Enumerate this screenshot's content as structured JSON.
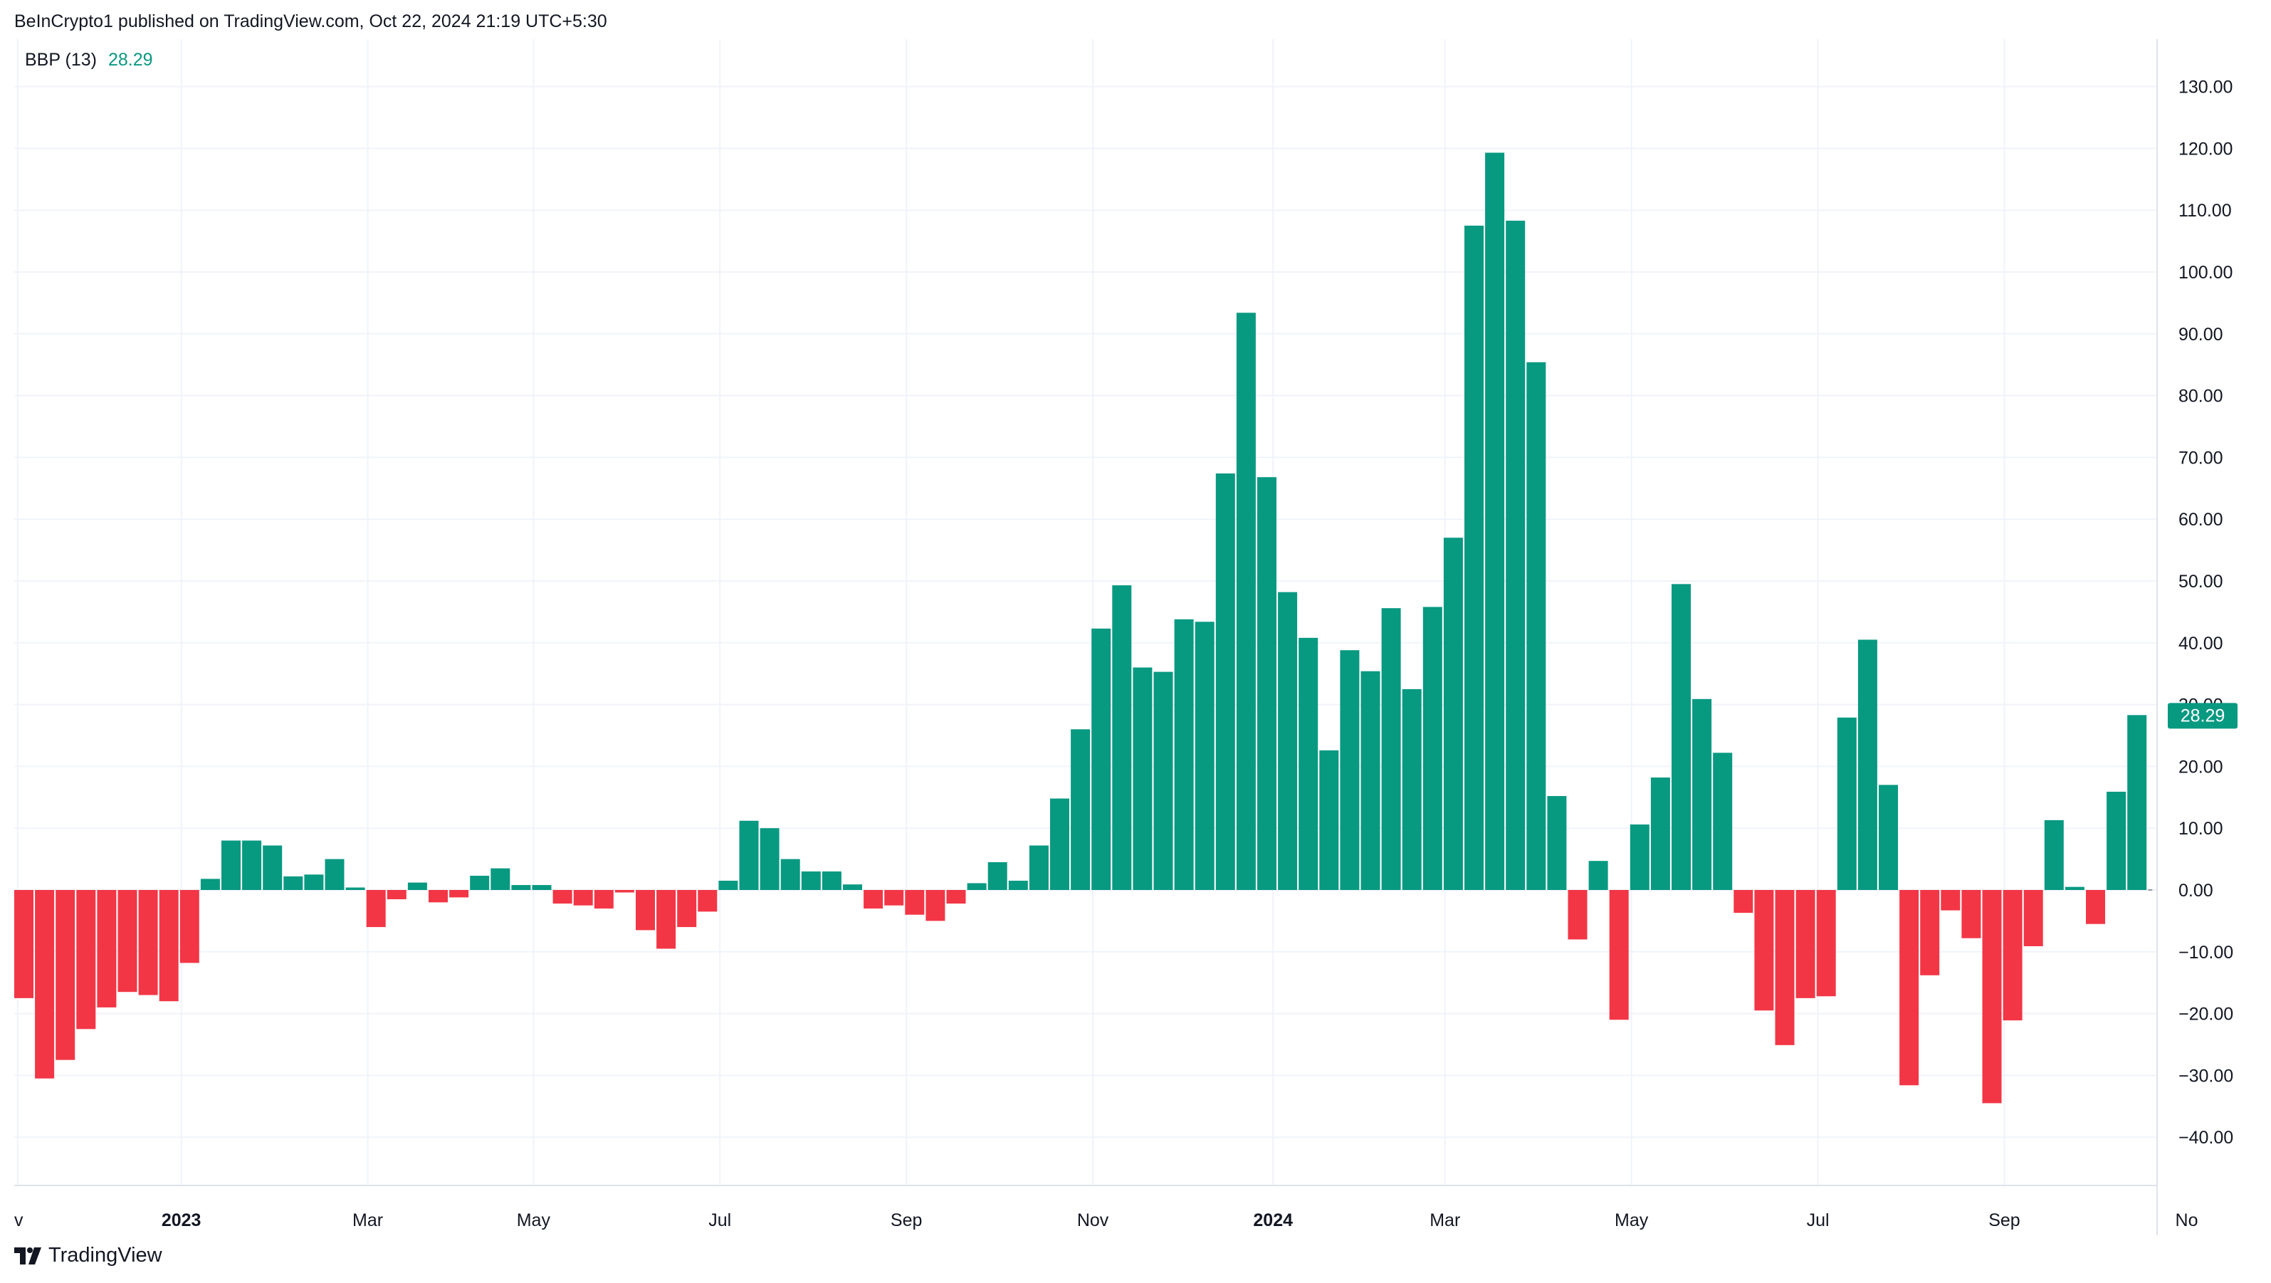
{
  "header": {
    "published_by": "BeInCrypto1 published on TradingView.com, Oct 22, 2024 21:19 UTC+5:30"
  },
  "legend": {
    "indicator": "BBP (13)",
    "value": "28.29"
  },
  "footer": {
    "brand": "TradingView"
  },
  "colors": {
    "positive": "#089981",
    "negative": "#f23645",
    "grid": "#f0f3fa",
    "text": "#131722",
    "label_bg": "#089981"
  },
  "chart_data": {
    "type": "bar",
    "title": "",
    "xlabel": "",
    "ylabel": "",
    "ylim": [
      -48.5,
      140.0
    ],
    "grid": true,
    "y_ticks": [
      130,
      120,
      110,
      100,
      90,
      80,
      70,
      60,
      50,
      40,
      30,
      20,
      10,
      0,
      -10,
      -20,
      -30,
      -40
    ],
    "y_tick_labels": [
      "130.00",
      "120.00",
      "110.00",
      "100.00",
      "90.00",
      "80.00",
      "70.00",
      "60.00",
      "50.00",
      "40.00",
      "30.00",
      "20.00",
      "10.00",
      "0.00",
      "−10.00",
      "−20.00",
      "−30.00",
      "−40.00"
    ],
    "x_tick_labels": [
      {
        "label": "v",
        "bold": false,
        "bar_pos": -0.3
      },
      {
        "label": "2023",
        "bold": true,
        "bar_pos": 7.6
      },
      {
        "label": "Mar",
        "bold": false,
        "bar_pos": 16.6
      },
      {
        "label": "May",
        "bold": false,
        "bar_pos": 24.6
      },
      {
        "label": "Jul",
        "bold": false,
        "bar_pos": 33.6
      },
      {
        "label": "Sep",
        "bold": false,
        "bar_pos": 42.6
      },
      {
        "label": "Nov",
        "bold": false,
        "bar_pos": 51.6
      },
      {
        "label": "2024",
        "bold": true,
        "bar_pos": 60.3
      },
      {
        "label": "Mar",
        "bold": false,
        "bar_pos": 68.6
      },
      {
        "label": "May",
        "bold": false,
        "bar_pos": 77.6
      },
      {
        "label": "Jul",
        "bold": false,
        "bar_pos": 86.6
      },
      {
        "label": "Sep",
        "bold": false,
        "bar_pos": 95.6
      },
      {
        "label": "No",
        "bold": false,
        "bar_pos": 104.4
      }
    ],
    "last_value_label": "28.29",
    "series": [
      {
        "values": [
          -17.5,
          -30.5,
          -27.5,
          -22.5,
          -19,
          -16.5,
          -17,
          -18,
          -11.8,
          1.8,
          8,
          8,
          7.2,
          2.2,
          2.5,
          5,
          0.4,
          -6,
          -1.5,
          1.2,
          -2,
          -1.2,
          2.3,
          3.5,
          0.8,
          0.8,
          -2.2,
          -2.5,
          -3,
          -0.4,
          -6.5,
          -9.5,
          -6,
          -3.5,
          1.5,
          11.2,
          10,
          5,
          3,
          3,
          0.9,
          -3,
          -2.5,
          -4,
          -5,
          -2.2,
          1.1,
          4.5,
          1.5,
          7.2,
          14.8,
          26,
          42.3,
          49.3,
          36,
          35.3,
          43.8,
          43.4,
          67.4,
          93.4,
          66.8,
          48.2,
          40.8,
          22.6,
          38.8,
          35.4,
          45.6,
          32.5,
          45.8,
          57,
          107.5,
          119.3,
          108.3,
          85.4,
          15.2,
          -8,
          4.7,
          -21,
          10.6,
          18.2,
          49.5,
          30.9,
          22.2,
          -3.7,
          -19.5,
          -25.1,
          -17.5,
          -17.2,
          27.9,
          40.5,
          17,
          -31.6,
          -13.8,
          -3.3,
          -7.8,
          -34.5,
          -21.1,
          -9.1,
          11.3,
          0.5,
          -5.5,
          15.9,
          28.3
        ]
      }
    ]
  }
}
